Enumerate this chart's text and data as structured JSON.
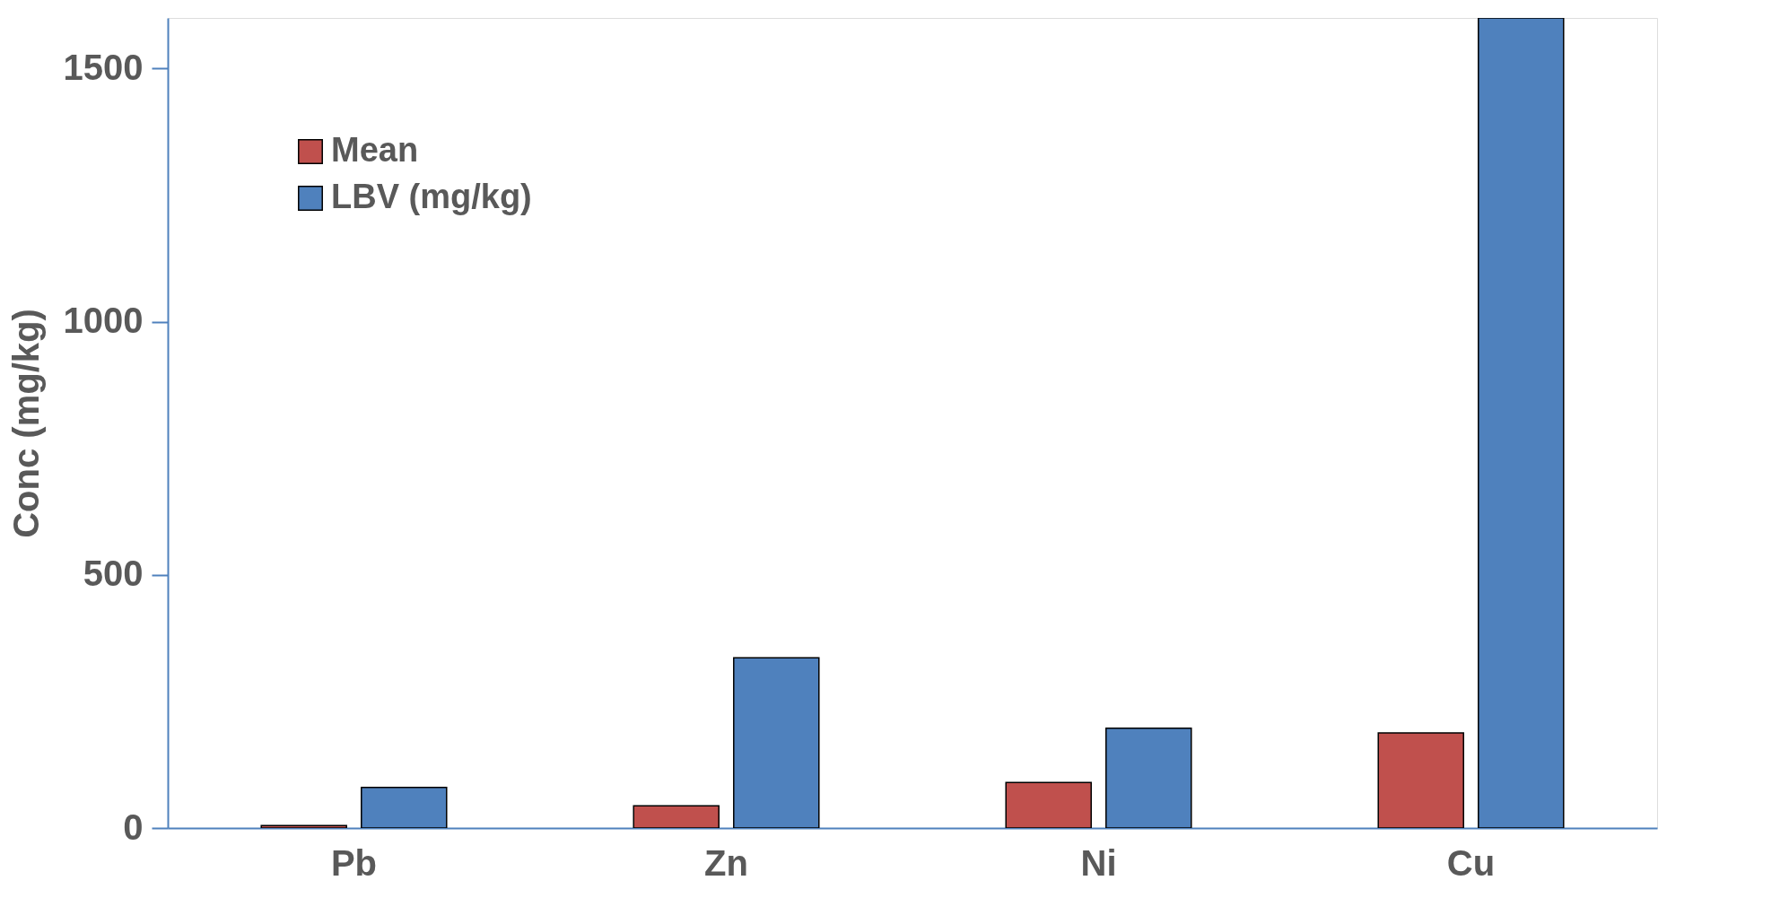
{
  "chart_data": {
    "type": "bar",
    "ylabel": "Conc (mg/kg)",
    "categories": [
      "Pb",
      "Zn",
      "Ni",
      "Cu"
    ],
    "series": [
      {
        "name": "Mean",
        "color": "#c0504d",
        "values": [
          5,
          44,
          90,
          188
        ]
      },
      {
        "name": "LBV (mg/kg)",
        "color": "#4f81bd",
        "values": [
          80,
          336,
          197,
          1600
        ]
      }
    ],
    "ylim": [
      0,
      1600
    ],
    "yticks": [
      0,
      500,
      1000,
      1500
    ],
    "grid": false,
    "legend": "top left"
  }
}
